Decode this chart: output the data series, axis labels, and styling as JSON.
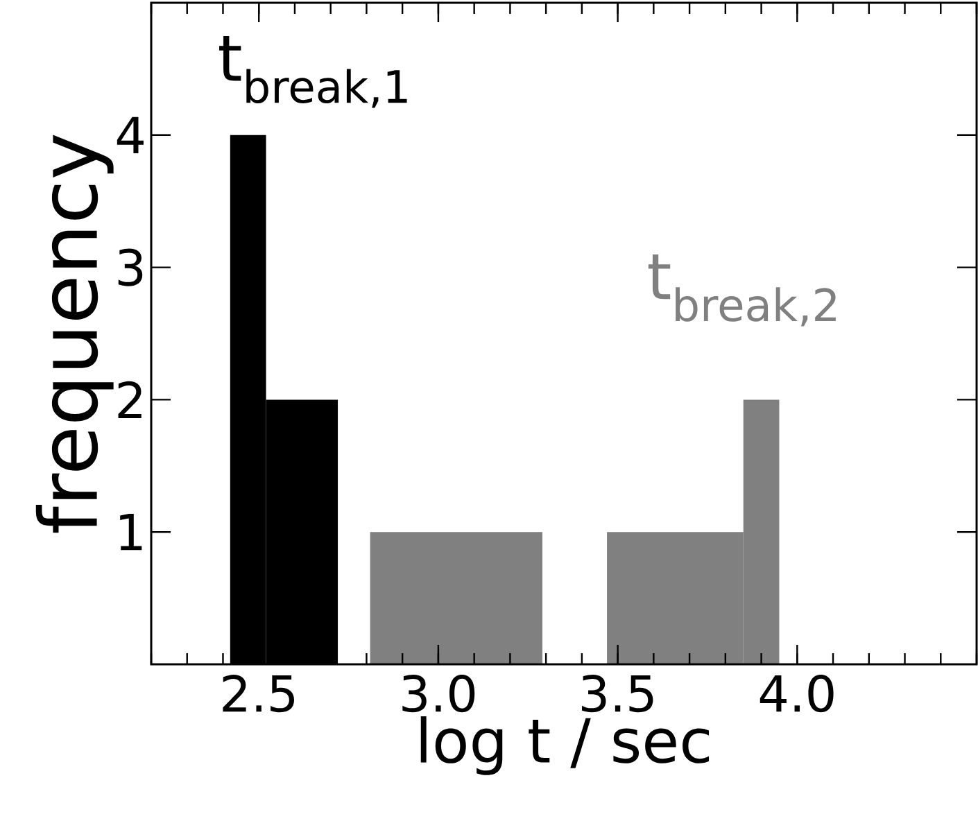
{
  "chart_data": {
    "type": "histogram",
    "xlabel": "log t / sec",
    "ylabel": "frequency",
    "bins": [
      2.42,
      2.52,
      2.72,
      2.81,
      3.29,
      3.47,
      3.85,
      3.95
    ],
    "values": [
      4,
      2,
      0,
      1,
      0,
      1,
      2
    ],
    "colors": [
      "#000000",
      "#000000",
      "#808080",
      "#808080",
      "#808080",
      "#808080",
      "#808080"
    ],
    "xlim": [
      2.2,
      4.5
    ],
    "ylim": [
      0,
      5
    ],
    "xticks": [
      2.5,
      {
        "value": 3,
        "label": "3.0"
      },
      3.5,
      {
        "value": 4,
        "label": "4.0"
      }
    ],
    "yticks": [
      1,
      2,
      3,
      4
    ],
    "grid": false,
    "annotations": [
      "t$_{break,1}$",
      "t$_{break,2}$"
    ]
  }
}
